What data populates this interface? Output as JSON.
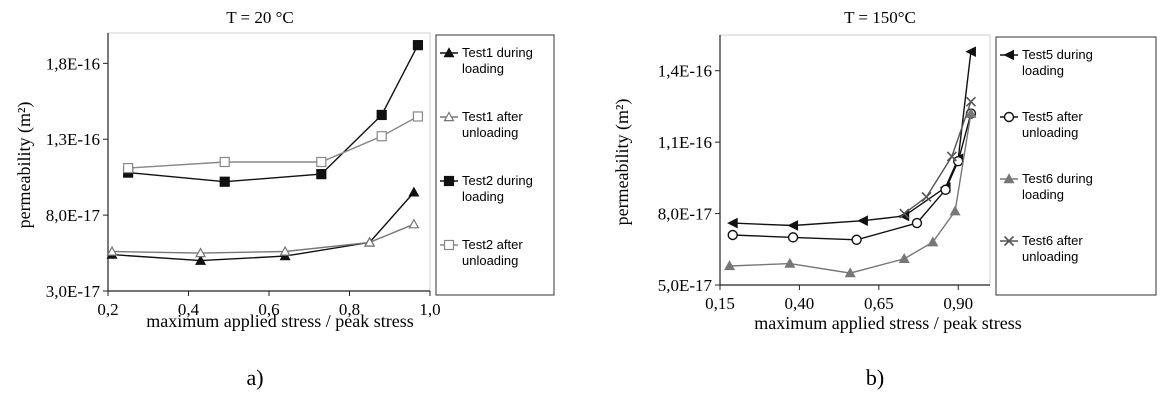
{
  "panels": [
    {
      "caption": "a)",
      "chart_data": {
        "type": "line",
        "title": "T = 20 °C",
        "xlabel": "maximum applied stress / peak stress",
        "ylabel": "permeability (m²)",
        "xlim": [
          0.2,
          1.0
        ],
        "ylim": [
          3e-17,
          2e-16
        ],
        "x_ticks": [
          0.2,
          0.4,
          0.6,
          0.8,
          1.0
        ],
        "x_tick_labels": [
          "0,2",
          "0,4",
          "0,6",
          "0,8",
          "1,0"
        ],
        "y_ticks": [
          3e-17,
          8e-17,
          1.3e-16,
          1.8e-16
        ],
        "y_tick_labels": [
          "3,0E-17",
          "8,0E-17",
          "1,3E-16",
          "1,8E-16"
        ],
        "grid": false,
        "legend_position": "right",
        "series": [
          {
            "name": "Test1 during loading",
            "marker": "triangle-filled",
            "color": "#111111",
            "x": [
              0.21,
              0.43,
              0.64,
              0.85,
              0.96
            ],
            "y": [
              5.4e-17,
              5e-17,
              5.3e-17,
              6.2e-17,
              9.5e-17
            ]
          },
          {
            "name": "Test1 after unloading",
            "marker": "triangle-open",
            "color": "#777777",
            "x": [
              0.21,
              0.43,
              0.64,
              0.85,
              0.96
            ],
            "y": [
              5.6e-17,
              5.5e-17,
              5.6e-17,
              6.2e-17,
              7.4e-17
            ]
          },
          {
            "name": "Test2 during loading",
            "marker": "square-filled",
            "color": "#111111",
            "x": [
              0.25,
              0.49,
              0.73,
              0.88,
              0.97
            ],
            "y": [
              1.08e-16,
              1.02e-16,
              1.07e-16,
              1.46e-16,
              1.92e-16
            ]
          },
          {
            "name": "Test2 after unloading",
            "marker": "square-open",
            "color": "#888888",
            "x": [
              0.25,
              0.49,
              0.73,
              0.88,
              0.97
            ],
            "y": [
              1.11e-16,
              1.15e-16,
              1.15e-16,
              1.32e-16,
              1.45e-16
            ]
          }
        ]
      }
    },
    {
      "caption": "b)",
      "chart_data": {
        "type": "line",
        "title": "T = 150°C",
        "xlabel": "maximum applied stress / peak stress",
        "ylabel": "permeability (m²)",
        "xlim": [
          0.15,
          1.0
        ],
        "ylim": [
          5e-17,
          1.55e-16
        ],
        "x_ticks": [
          0.15,
          0.4,
          0.65,
          0.9
        ],
        "x_tick_labels": [
          "0,15",
          "0,40",
          "0,65",
          "0,90"
        ],
        "y_ticks": [
          5e-17,
          8e-17,
          1.1e-16,
          1.4e-16
        ],
        "y_tick_labels": [
          "5,0E-17",
          "8,0E-17",
          "1,1E-16",
          "1,4E-16"
        ],
        "grid": false,
        "legend_position": "right",
        "series": [
          {
            "name": "Test5 during loading",
            "marker": "left-triangle",
            "color": "#111111",
            "x": [
              0.19,
              0.38,
              0.6,
              0.73,
              0.86,
              0.9,
              0.94
            ],
            "y": [
              7.6e-17,
              7.5e-17,
              7.7e-17,
              7.9e-17,
              9.1e-17,
              1.03e-16,
              1.48e-16
            ]
          },
          {
            "name": "Test5 after unloading",
            "marker": "circle-open",
            "color": "#111111",
            "x": [
              0.19,
              0.38,
              0.58,
              0.77,
              0.86,
              0.9,
              0.94
            ],
            "y": [
              7.1e-17,
              7e-17,
              6.9e-17,
              7.6e-17,
              9e-17,
              1.02e-16,
              1.22e-16
            ]
          },
          {
            "name": "Test6 during loading",
            "marker": "triangle-filled",
            "color": "#777777",
            "x": [
              0.18,
              0.37,
              0.56,
              0.73,
              0.82,
              0.89,
              0.94
            ],
            "y": [
              5.8e-17,
              5.9e-17,
              5.5e-17,
              6.1e-17,
              6.8e-17,
              8.1e-17,
              1.22e-16
            ]
          },
          {
            "name": "Test6 after unloading",
            "marker": "cross",
            "color": "#555555",
            "x": [
              0.73,
              0.8,
              0.88,
              0.94
            ],
            "y": [
              8e-17,
              8.7e-17,
              1.04e-16,
              1.27e-16
            ]
          }
        ]
      }
    }
  ]
}
